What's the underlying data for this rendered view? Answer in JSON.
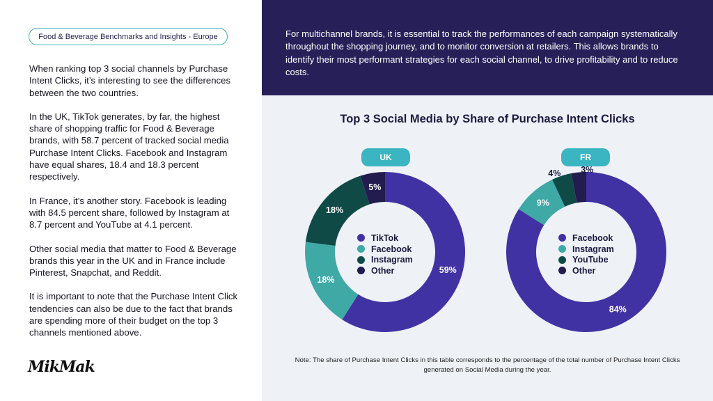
{
  "left": {
    "tag": "Food & Beverage Benchmarks and Insights - Europe",
    "paragraphs": [
      "When ranking top 3 social channels by Purchase Intent Clicks, it’s interesting to see the differences between the two countries.",
      "In the UK, TikTok generates, by far, the highest share of shopping traffic for Food & Beverage brands, with 58.7 percent of tracked social media Purchase Intent Clicks. Facebook and Instagram have equal shares, 18.4 and 18.3 percent respectively.",
      "In France, it’s another story. Facebook is leading with 84.5 percent share, followed by Instagram at 8.7 percent and YouTube at 4.1 percent.",
      "Other social media that matter to Food & Beverage brands this year in the UK and in France  include Pinterest, Snapchat, and Reddit.",
      "It is important to note that the Purchase Intent Click tendencies can also be due to the fact that brands are spending more of their budget on the top 3 channels mentioned above."
    ],
    "logo": "MikMak"
  },
  "top_text": "For multichannel brands, it is essential to track the performances of each campaign systematically throughout the shopping journey, and to monitor conversion at retailers. This allows brands to identify their most performant strategies for each social channel, to drive profitability and to reduce costs.",
  "note": "Note: The share of Purchase Intent Clicks in this table corresponds to the percentage of the total number of Purchase Intent Clicks generated on Social Media during the year.",
  "colors": {
    "navy": "#272058",
    "purple": "#4132a3",
    "teal": "#3fa9a6",
    "dark_green": "#0f4a47",
    "dark_navy": "#231c4e",
    "pill_teal": "#3cb5c3"
  },
  "chart_data": {
    "type": "pie",
    "title": "Top 3 Social Media by Share of Purchase Intent Clicks",
    "charts": [
      {
        "country": "UK",
        "slices": [
          {
            "name": "TikTok",
            "value": 59,
            "label": "59%",
            "color": "#4132a3",
            "label_color": "#ffffff"
          },
          {
            "name": "Facebook",
            "value": 18,
            "label": "18%",
            "color": "#3fa9a6",
            "label_color": "#ffffff"
          },
          {
            "name": "Instagram",
            "value": 18,
            "label": "18%",
            "color": "#0f4a47",
            "label_color": "#ffffff"
          },
          {
            "name": "Other",
            "value": 5,
            "label": "5%",
            "color": "#231c4e",
            "label_color": "#ffffff"
          }
        ]
      },
      {
        "country": "FR",
        "slices": [
          {
            "name": "Facebook",
            "value": 84,
            "label": "84%",
            "color": "#4132a3",
            "label_color": "#ffffff"
          },
          {
            "name": "Instagram",
            "value": 9,
            "label": "9%",
            "color": "#3fa9a6",
            "label_color": "#ffffff"
          },
          {
            "name": "YouTube",
            "value": 4,
            "label": "4%",
            "color": "#0f4a47",
            "label_color": "#1d1a40"
          },
          {
            "name": "Other",
            "value": 3,
            "label": "3%",
            "color": "#231c4e",
            "label_color": "#1d1a40"
          }
        ]
      }
    ]
  }
}
